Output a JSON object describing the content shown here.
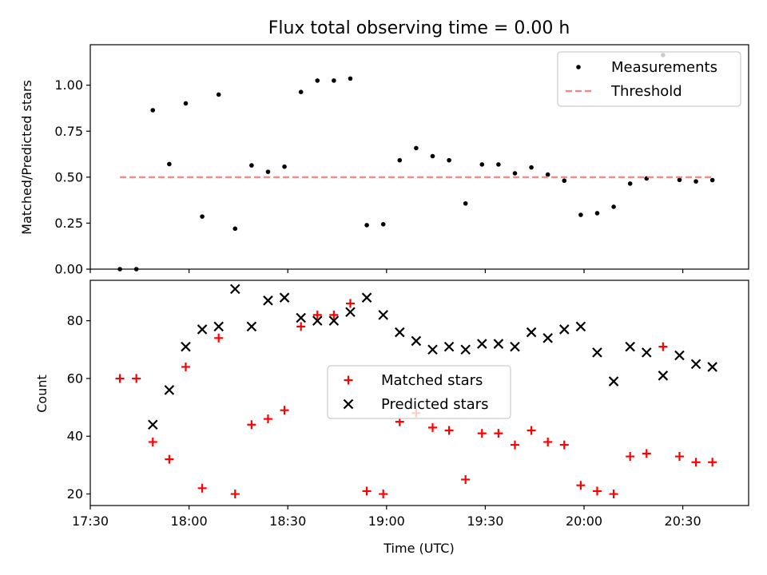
{
  "chart_data": [
    {
      "type": "scatter",
      "title": "Flux total observing time = 0.00 h",
      "xlabel": "",
      "ylabel": "Matched/Predicted stars",
      "ylim": [
        0,
        1.22
      ],
      "xlim": [
        "17:30",
        "20:50"
      ],
      "yticks": [
        "0.00",
        "0.25",
        "0.50",
        "0.75",
        "1.00"
      ],
      "legend_position": "upper right",
      "series": [
        {
          "name": "Measurements",
          "marker": "dot",
          "color": "#000000",
          "points": [
            [
              "17:39",
              0.0
            ],
            [
              "17:44",
              0.0
            ],
            [
              "17:49",
              0.864
            ],
            [
              "17:54",
              0.571
            ],
            [
              "17:59",
              0.901
            ],
            [
              "18:04",
              0.286
            ],
            [
              "18:09",
              0.949
            ],
            [
              "18:14",
              0.22
            ],
            [
              "18:19",
              0.564
            ],
            [
              "18:24",
              0.529
            ],
            [
              "18:29",
              0.557
            ],
            [
              "18:34",
              0.963
            ],
            [
              "18:39",
              1.025
            ],
            [
              "18:44",
              1.025
            ],
            [
              "18:49",
              1.036
            ],
            [
              "18:54",
              0.239
            ],
            [
              "18:59",
              0.244
            ],
            [
              "19:04",
              0.592
            ],
            [
              "19:09",
              0.658
            ],
            [
              "19:14",
              0.614
            ],
            [
              "19:19",
              0.592
            ],
            [
              "19:24",
              0.357
            ],
            [
              "19:29",
              0.569
            ],
            [
              "19:34",
              0.569
            ],
            [
              "19:39",
              0.521
            ],
            [
              "19:44",
              0.553
            ],
            [
              "19:49",
              0.514
            ],
            [
              "19:54",
              0.481
            ],
            [
              "19:59",
              0.295
            ],
            [
              "20:04",
              0.304
            ],
            [
              "20:09",
              0.339
            ],
            [
              "20:14",
              0.465
            ],
            [
              "20:19",
              0.493
            ],
            [
              "20:24",
              1.164
            ],
            [
              "20:29",
              0.485
            ],
            [
              "20:34",
              0.477
            ],
            [
              "20:39",
              0.484
            ]
          ]
        },
        {
          "name": "Threshold",
          "style": "dashed",
          "color": "#ff7f7f",
          "points": [
            [
              "17:39",
              0.5
            ],
            [
              "20:39",
              0.5
            ]
          ]
        }
      ]
    },
    {
      "type": "scatter",
      "title": "",
      "xlabel": "Time (UTC)",
      "ylabel": "Count",
      "ylim": [
        16,
        94
      ],
      "xlim": [
        "17:30",
        "20:50"
      ],
      "xticks": [
        "17:30",
        "18:00",
        "18:30",
        "19:00",
        "19:30",
        "20:00",
        "20:30"
      ],
      "yticks": [
        "20",
        "40",
        "60",
        "80"
      ],
      "legend_position": "center",
      "series": [
        {
          "name": "Matched stars",
          "marker": "plus",
          "color": "#ff0000",
          "points": [
            [
              "17:39",
              60
            ],
            [
              "17:44",
              60
            ],
            [
              "17:49",
              38
            ],
            [
              "17:54",
              32
            ],
            [
              "17:59",
              64
            ],
            [
              "18:04",
              22
            ],
            [
              "18:09",
              74
            ],
            [
              "18:14",
              20
            ],
            [
              "18:19",
              44
            ],
            [
              "18:24",
              46
            ],
            [
              "18:29",
              49
            ],
            [
              "18:34",
              78
            ],
            [
              "18:39",
              82
            ],
            [
              "18:44",
              82
            ],
            [
              "18:49",
              86
            ],
            [
              "18:54",
              21
            ],
            [
              "18:59",
              20
            ],
            [
              "19:04",
              45
            ],
            [
              "19:09",
              48
            ],
            [
              "19:14",
              43
            ],
            [
              "19:19",
              42
            ],
            [
              "19:24",
              25
            ],
            [
              "19:29",
              41
            ],
            [
              "19:34",
              41
            ],
            [
              "19:39",
              37
            ],
            [
              "19:44",
              42
            ],
            [
              "19:49",
              38
            ],
            [
              "19:54",
              37
            ],
            [
              "19:59",
              23
            ],
            [
              "20:04",
              21
            ],
            [
              "20:09",
              20
            ],
            [
              "20:14",
              33
            ],
            [
              "20:19",
              34
            ],
            [
              "20:24",
              71
            ],
            [
              "20:29",
              33
            ],
            [
              "20:34",
              31
            ],
            [
              "20:39",
              31
            ]
          ]
        },
        {
          "name": "Predicted stars",
          "marker": "x",
          "color": "#000000",
          "points": [
            [
              "17:49",
              44
            ],
            [
              "17:54",
              56
            ],
            [
              "17:59",
              71
            ],
            [
              "18:04",
              77
            ],
            [
              "18:09",
              78
            ],
            [
              "18:14",
              91
            ],
            [
              "18:19",
              78
            ],
            [
              "18:24",
              87
            ],
            [
              "18:29",
              88
            ],
            [
              "18:34",
              81
            ],
            [
              "18:39",
              80
            ],
            [
              "18:44",
              80
            ],
            [
              "18:49",
              83
            ],
            [
              "18:54",
              88
            ],
            [
              "18:59",
              82
            ],
            [
              "19:04",
              76
            ],
            [
              "19:09",
              73
            ],
            [
              "19:14",
              70
            ],
            [
              "19:19",
              71
            ],
            [
              "19:24",
              70
            ],
            [
              "19:29",
              72
            ],
            [
              "19:34",
              72
            ],
            [
              "19:39",
              71
            ],
            [
              "19:44",
              76
            ],
            [
              "19:49",
              74
            ],
            [
              "19:54",
              77
            ],
            [
              "19:59",
              78
            ],
            [
              "20:04",
              69
            ],
            [
              "20:09",
              59
            ],
            [
              "20:14",
              71
            ],
            [
              "20:19",
              69
            ],
            [
              "20:24",
              61
            ],
            [
              "20:29",
              68
            ],
            [
              "20:34",
              65
            ],
            [
              "20:39",
              64
            ]
          ]
        }
      ]
    }
  ]
}
